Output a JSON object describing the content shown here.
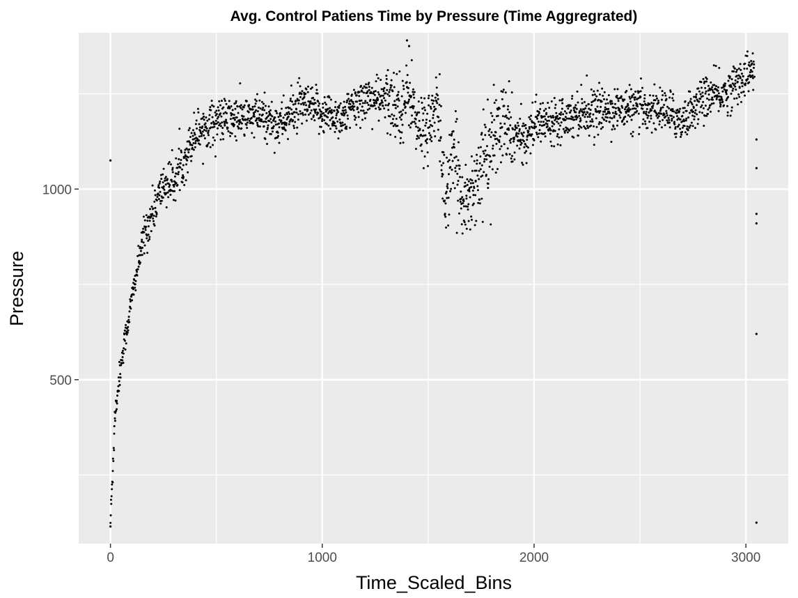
{
  "chart_data": {
    "type": "scatter",
    "title": "Avg. Control Patiens Time by Pressure (Time Aggregrated)",
    "xlabel": "Time_Scaled_Bins",
    "ylabel": "Pressure",
    "xlim": [
      -150,
      3200
    ],
    "ylim": [
      70,
      1410
    ],
    "x_major_ticks": [
      0,
      1000,
      2000,
      3000
    ],
    "x_minor_ticks": [
      500,
      1500,
      2500
    ],
    "y_major_ticks": [
      500,
      1000
    ],
    "y_minor_ticks": [
      250,
      750,
      1250
    ],
    "x_tick_labels": [
      "0",
      "1000",
      "2000",
      "3000"
    ],
    "y_tick_labels": [
      "500",
      "1000"
    ],
    "grid": true,
    "panel_background": "#ebebeb",
    "grid_color": "#ffffff",
    "point_color": "#000000",
    "trend": [
      [
        0,
        130
      ],
      [
        10,
        250
      ],
      [
        20,
        400
      ],
      [
        40,
        500
      ],
      [
        60,
        580
      ],
      [
        80,
        640
      ],
      [
        100,
        710
      ],
      [
        130,
        800
      ],
      [
        160,
        880
      ],
      [
        200,
        940
      ],
      [
        250,
        1010
      ],
      [
        300,
        1020
      ],
      [
        350,
        1080
      ],
      [
        400,
        1150
      ],
      [
        500,
        1180
      ],
      [
        700,
        1190
      ],
      [
        800,
        1170
      ],
      [
        900,
        1220
      ],
      [
        1000,
        1200
      ],
      [
        1100,
        1190
      ],
      [
        1200,
        1240
      ],
      [
        1300,
        1230
      ],
      [
        1380,
        1220
      ],
      [
        1420,
        1250
      ],
      [
        1450,
        1150
      ],
      [
        1500,
        1170
      ],
      [
        1550,
        1210
      ],
      [
        1580,
        970
      ],
      [
        1620,
        1080
      ],
      [
        1680,
        960
      ],
      [
        1750,
        1060
      ],
      [
        1800,
        1120
      ],
      [
        1850,
        1170
      ],
      [
        1900,
        1140
      ],
      [
        1950,
        1130
      ],
      [
        2000,
        1170
      ],
      [
        2200,
        1200
      ],
      [
        2400,
        1210
      ],
      [
        2600,
        1210
      ],
      [
        2700,
        1180
      ],
      [
        2800,
        1240
      ],
      [
        2900,
        1250
      ],
      [
        3000,
        1300
      ],
      [
        3040,
        1310
      ]
    ],
    "outliers": [
      [
        0,
        1075
      ],
      [
        0,
        115
      ],
      [
        3050,
        1130
      ],
      [
        3050,
        1055
      ],
      [
        3050,
        935
      ],
      [
        3050,
        910
      ],
      [
        3050,
        620
      ],
      [
        3050,
        125
      ],
      [
        1400,
        1390
      ],
      [
        1410,
        1375
      ]
    ]
  }
}
